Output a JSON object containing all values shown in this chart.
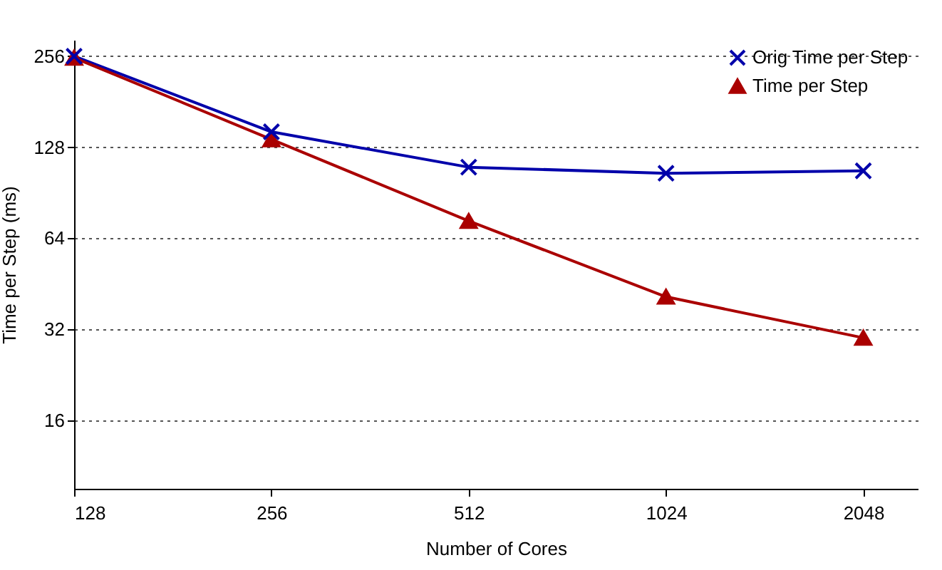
{
  "chart_data": {
    "type": "line",
    "xlabel": "Number of Cores",
    "ylabel": "Time per Step (ms)",
    "x": [
      128,
      256,
      512,
      1024,
      2048
    ],
    "series": [
      {
        "name": "Orig Time per Step",
        "color": "#0000aa",
        "marker": "cross",
        "values": [
          256,
          144,
          110,
          105,
          107
        ]
      },
      {
        "name": "Time per Step",
        "color": "#aa0000",
        "marker": "triangle",
        "values": [
          253,
          136,
          73,
          41,
          30
        ]
      }
    ],
    "log": "xy",
    "xlim": [
      128,
      2480
    ],
    "xticks": [
      128,
      256,
      512,
      1024,
      2048
    ],
    "ylim": [
      9.5,
      290
    ],
    "yticks": [
      16,
      32,
      64,
      128,
      256
    ],
    "grid": "y",
    "legend": "top right"
  }
}
